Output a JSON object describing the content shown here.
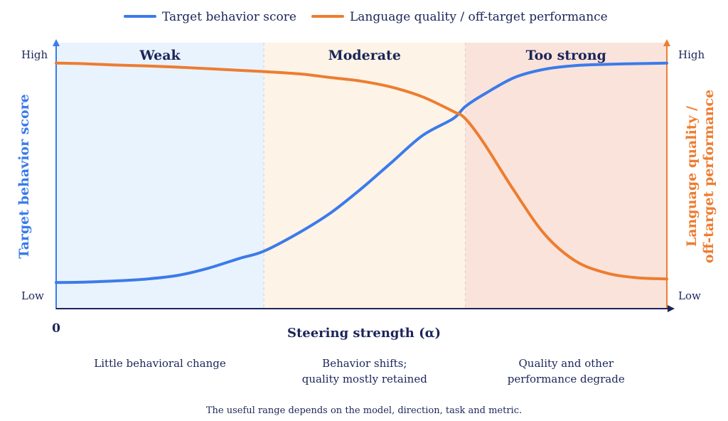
{
  "chart_data": {
    "type": "line",
    "legend": {
      "position": "top-center",
      "items": [
        {
          "label": "Target behavior score",
          "color": "#3b7bea"
        },
        {
          "label": "Language quality / off-target performance",
          "color": "#ed7d31"
        }
      ]
    },
    "xlabel": "Steering strength (α)",
    "x_tick_label": "0",
    "xlim": [
      0,
      1
    ],
    "ylim": [
      0,
      1
    ],
    "ylabel_left": "Target behavior score",
    "ylabel_right_lines": [
      "Language quality /",
      "off-target performance"
    ],
    "y_ticks_left": {
      "high": "High",
      "low": "Low"
    },
    "y_ticks_right": {
      "high": "High",
      "low": "Low"
    },
    "regions": [
      {
        "label": "Weak",
        "x0": 0.0,
        "x1": 0.34,
        "color": "#e9f3fd",
        "note_lines": [
          "Little behavioral change"
        ]
      },
      {
        "label": "Moderate",
        "x0": 0.34,
        "x1": 0.67,
        "color": "#fdf3e6",
        "note_lines": [
          "Behavior shifts;",
          "quality mostly retained"
        ]
      },
      {
        "label": "Too strong",
        "x0": 0.67,
        "x1": 1.0,
        "color": "#fae3da",
        "note_lines": [
          "Quality and other",
          "performance degrade"
        ]
      }
    ],
    "series": [
      {
        "name": "Target behavior score",
        "color": "#3b7bea",
        "x": [
          0,
          0.05,
          0.1,
          0.15,
          0.2,
          0.25,
          0.3,
          0.34,
          0.4,
          0.45,
          0.5,
          0.55,
          0.6,
          0.65,
          0.67,
          0.7,
          0.75,
          0.8,
          0.85,
          0.9,
          0.95,
          1.0
        ],
        "y": [
          0.07,
          0.072,
          0.077,
          0.085,
          0.1,
          0.13,
          0.17,
          0.2,
          0.28,
          0.36,
          0.46,
          0.57,
          0.68,
          0.75,
          0.8,
          0.85,
          0.92,
          0.955,
          0.97,
          0.975,
          0.978,
          0.98
        ]
      },
      {
        "name": "Language quality / off-target performance",
        "color": "#ed7d31",
        "x": [
          0,
          0.05,
          0.1,
          0.15,
          0.2,
          0.25,
          0.3,
          0.34,
          0.4,
          0.45,
          0.5,
          0.55,
          0.6,
          0.65,
          0.67,
          0.7,
          0.75,
          0.8,
          0.85,
          0.9,
          0.95,
          1.0
        ],
        "y": [
          0.98,
          0.977,
          0.972,
          0.968,
          0.963,
          0.957,
          0.95,
          0.945,
          0.935,
          0.92,
          0.905,
          0.88,
          0.84,
          0.78,
          0.75,
          0.65,
          0.45,
          0.27,
          0.16,
          0.11,
          0.09,
          0.085
        ]
      }
    ],
    "footnote": "The useful range depends on the model, direction, task and metric."
  }
}
